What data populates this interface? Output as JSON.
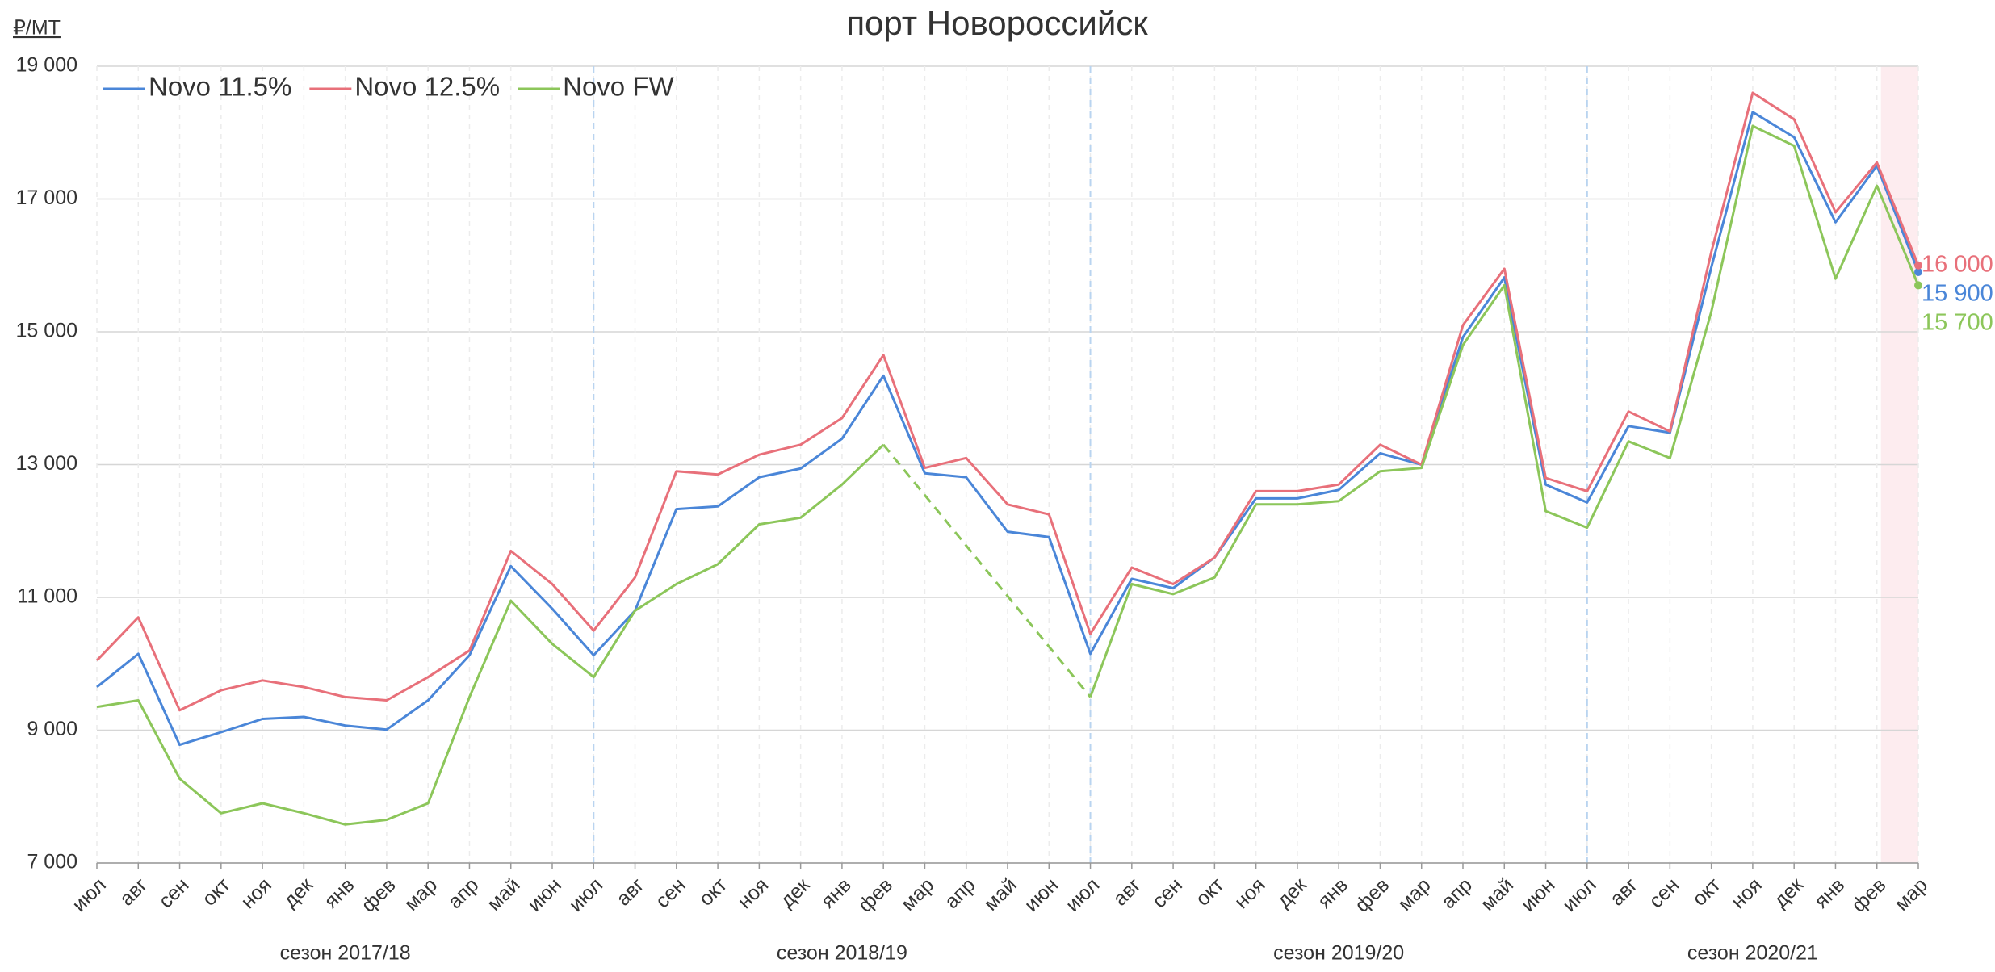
{
  "chart_data": {
    "type": "line",
    "title": "порт Новороссийск",
    "y_unit": "₽/MT",
    "categories": [
      "июл",
      "авг",
      "сен",
      "окт",
      "ноя",
      "дек",
      "янв",
      "фев",
      "мар",
      "апр",
      "май",
      "июн",
      "июл",
      "авг",
      "сен",
      "окт",
      "ноя",
      "дек",
      "янв",
      "фев",
      "мар",
      "апр",
      "май",
      "июн",
      "июл",
      "авг",
      "сен",
      "окт",
      "ноя",
      "дек",
      "янв",
      "фев",
      "мар",
      "апр",
      "май",
      "июн",
      "июл",
      "авг",
      "сен",
      "окт",
      "ноя",
      "дек",
      "янв",
      "фев",
      "мар"
    ],
    "seasons": [
      {
        "label": "сезон 2017/18",
        "from": 0,
        "to": 12
      },
      {
        "label": "сезон 2018/19",
        "from": 12,
        "to": 24
      },
      {
        "label": "сезон 2019/20",
        "from": 24,
        "to": 36
      },
      {
        "label": "сезон 2020/21",
        "from": 36,
        "to": 44
      }
    ],
    "highlight_from": 43,
    "highlight_color": "#fdecef",
    "series": [
      {
        "name": "Novo 11.5%",
        "color": "#4a86d8",
        "last_label": "15 900",
        "values": [
          9650,
          10150,
          8780,
          8970,
          9170,
          9200,
          9070,
          9010,
          9450,
          10130,
          11470,
          10830,
          10130,
          10800,
          12330,
          12370,
          12810,
          12940,
          13390,
          14340,
          12870,
          12810,
          11990,
          11910,
          10150,
          11280,
          11140,
          11600,
          12490,
          12490,
          12620,
          13170,
          13000,
          14920,
          15820,
          12700,
          12430,
          13580,
          13480,
          15970,
          18310,
          17930,
          16650,
          17500,
          15900
        ]
      },
      {
        "name": "Novo 12.5%",
        "color": "#e8707a",
        "last_label": "16 000",
        "values": [
          10050,
          10700,
          9300,
          9600,
          9750,
          9650,
          9500,
          9450,
          9800,
          10200,
          11700,
          11200,
          10500,
          11300,
          12900,
          12850,
          13150,
          13300,
          13700,
          14650,
          12950,
          13100,
          12400,
          12250,
          10450,
          11450,
          11200,
          11600,
          12600,
          12600,
          12700,
          13300,
          13000,
          15100,
          15950,
          12800,
          12600,
          13800,
          13500,
          16200,
          18600,
          18200,
          16800,
          17550,
          16000
        ]
      },
      {
        "name": "Novo FW",
        "color": "#8cc65a",
        "last_label": "15 700",
        "gaps": "dashed",
        "values": [
          9350,
          9450,
          8270,
          7750,
          7900,
          7750,
          7580,
          7650,
          7900,
          9500,
          10950,
          10300,
          9800,
          10800,
          11200,
          11500,
          12100,
          12200,
          12700,
          13300,
          null,
          null,
          null,
          null,
          9500,
          11200,
          11050,
          11300,
          12400,
          12400,
          12450,
          12900,
          12950,
          14800,
          15700,
          12300,
          12050,
          13350,
          13100,
          15300,
          18100,
          17800,
          15800,
          17200,
          15700
        ]
      }
    ],
    "ylim": [
      7000,
      19000
    ],
    "yticks": [
      {
        "value": 7000,
        "label": "7 000"
      },
      {
        "value": 9000,
        "label": "9 000"
      },
      {
        "value": 11000,
        "label": "11 000"
      },
      {
        "value": 13000,
        "label": "13 000"
      },
      {
        "value": 15000,
        "label": "15 000"
      },
      {
        "value": 17000,
        "label": "17 000"
      },
      {
        "value": 19000,
        "label": "19 000"
      }
    ],
    "grid": true,
    "legend": "top-left"
  }
}
